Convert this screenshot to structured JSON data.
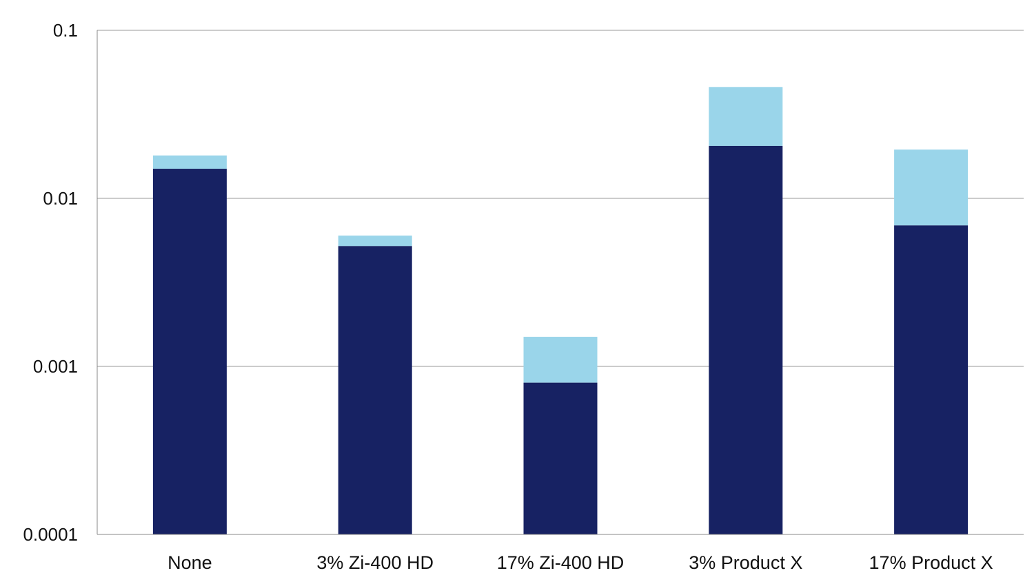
{
  "chart_data": {
    "type": "bar",
    "stacked": true,
    "title": "",
    "xlabel": "",
    "ylabel": "",
    "yscale": "log",
    "ylim": [
      0.0001,
      0.1
    ],
    "y_ticks": [
      "0.1",
      "0.01",
      "0.001",
      "0.0001"
    ],
    "y_tick_values": [
      0.1,
      0.01,
      0.001,
      0.0001
    ],
    "grid": "horizontal",
    "legend": "none",
    "categories": [
      "None",
      "3% Zi-400 HD",
      "17% Zi-400 HD",
      "3% Product X",
      "17% Product X"
    ],
    "series": [
      {
        "values": [
          0.015,
          0.0052,
          0.0008,
          0.0205,
          0.0069
        ],
        "color": "#172263"
      },
      {
        "top_values": [
          0.018,
          0.006,
          0.0015,
          0.046,
          0.0195
        ],
        "color": "#9ad5ea"
      }
    ]
  }
}
